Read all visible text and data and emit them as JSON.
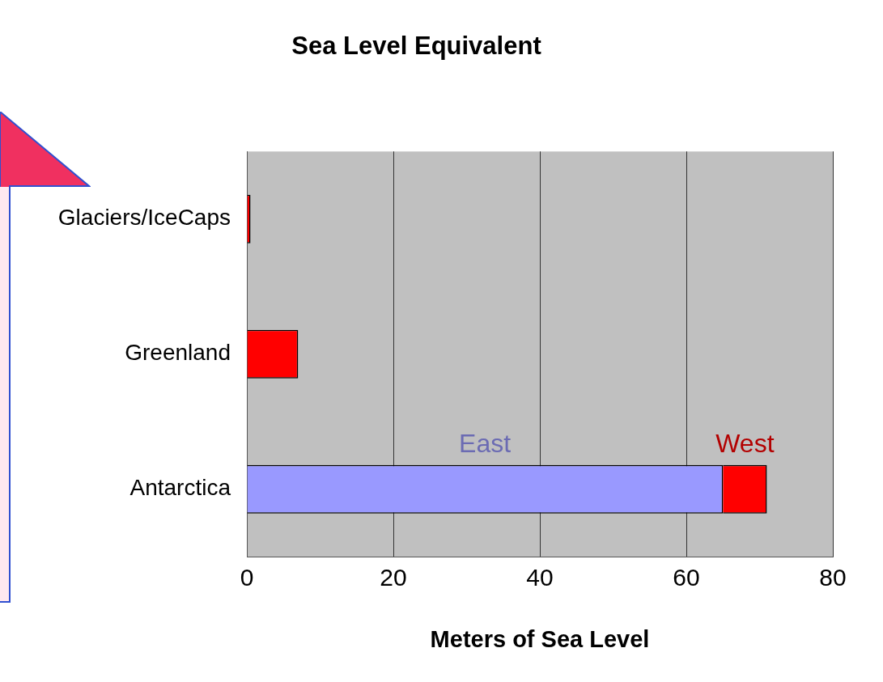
{
  "chart_data": {
    "type": "bar",
    "orientation": "horizontal",
    "stacked": true,
    "title": "Sea Level Equivalent",
    "xlabel": "Meters of Sea Level",
    "categories": [
      "Glaciers/IceCaps",
      "Greenland",
      "Antarctica"
    ],
    "series": [
      {
        "color": "#ff0000",
        "values": [
          0.5,
          7,
          null
        ]
      },
      {
        "name": "East",
        "color": "#9999ff",
        "values": [
          null,
          null,
          65
        ]
      },
      {
        "name": "West",
        "color": "#ff0000",
        "values": [
          null,
          null,
          6
        ]
      }
    ],
    "xlim": [
      0,
      80
    ],
    "xticks": [
      0,
      20,
      40,
      60,
      80
    ],
    "grid": "x",
    "legend": false
  }
}
